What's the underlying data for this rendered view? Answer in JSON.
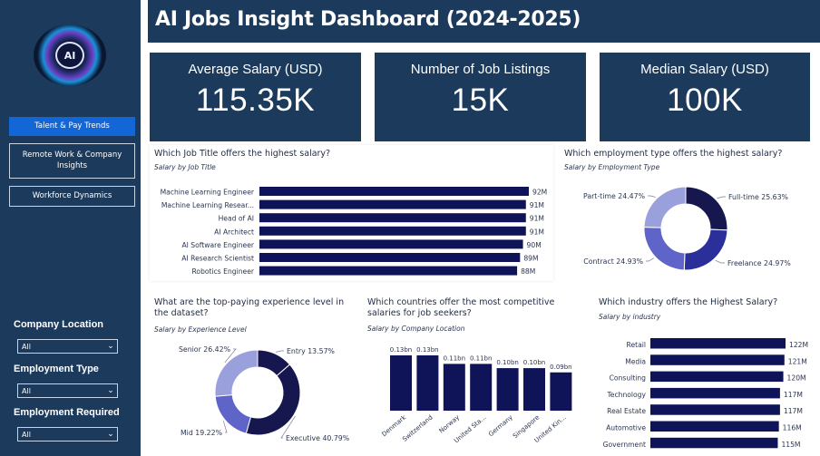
{
  "header": {
    "title": "AI Jobs Insight Dashboard (2024-2025)"
  },
  "logo": {
    "text": "AI"
  },
  "nav": {
    "buttons": [
      {
        "label": "Talent & Pay Trends",
        "active": true
      },
      {
        "label": "Remote Work & Company Insights",
        "active": false
      },
      {
        "label": "Workforce Dynamics",
        "active": false
      }
    ]
  },
  "filters": {
    "company_location": {
      "label": "Company Location",
      "value": "All"
    },
    "employment_type": {
      "label": "Employment Type",
      "value": "All"
    },
    "employment_required": {
      "label": "Employment Required",
      "value": "All"
    }
  },
  "kpis": {
    "average_salary": {
      "label": "Average Salary (USD)",
      "value": "115.35K"
    },
    "job_listings": {
      "label": "Number of Job Listings",
      "value": "15K"
    },
    "median_salary": {
      "label": "Median Salary (USD)",
      "value": "100K"
    }
  },
  "panels": {
    "job_title": {
      "title": "Which Job Title offers the highest salary?",
      "subtitle": "Salary by Job Title"
    },
    "employment_type": {
      "title": "Which employment type offers the highest salary?",
      "subtitle": "Salary by Employment Type"
    },
    "experience": {
      "title": "What are the top-paying experience level in the dataset?",
      "subtitle": "Salary by Experience Level"
    },
    "countries": {
      "title": "Which countries offer the most competitive salaries for job seekers?",
      "subtitle": "Salary by Company Location"
    },
    "industry": {
      "title": "Which industry offers the Highest Salary?",
      "subtitle": "Salary by industry"
    }
  },
  "colors": {
    "navy": "#1b3a5c",
    "active": "#1366d6",
    "bar": "#0f1458",
    "donut": [
      "#17174f",
      "#2b2f9a",
      "#5f64c8",
      "#9aa0dc"
    ]
  },
  "chart_data": [
    {
      "id": "job_title",
      "type": "bar",
      "orientation": "horizontal",
      "categories": [
        "Machine Learning Engineer",
        "Machine Learning Resear...",
        "Head of AI",
        "AI Architect",
        "AI Software Engineer",
        "AI Research Scientist",
        "Robotics Engineer"
      ],
      "values": [
        92,
        91,
        91,
        91,
        90,
        89,
        88
      ],
      "data_labels": [
        "92M",
        "91M",
        "91M",
        "91M",
        "90M",
        "89M",
        "88M"
      ],
      "xlim": [
        0,
        92
      ]
    },
    {
      "id": "employment_type",
      "type": "pie",
      "donut": true,
      "categories": [
        "Full-time",
        "Freelance",
        "Contract",
        "Part-time"
      ],
      "values": [
        25.63,
        24.97,
        24.93,
        24.47
      ],
      "data_labels": [
        "Full-time 25.63%",
        "Freelance 24.97%",
        "Contract 24.93%",
        "Part-time 24.47%"
      ]
    },
    {
      "id": "experience",
      "type": "pie",
      "donut": true,
      "categories": [
        "Entry",
        "Executive",
        "Mid",
        "Senior"
      ],
      "values": [
        13.57,
        40.79,
        19.22,
        26.42
      ],
      "data_labels": [
        "Entry 13.57%",
        "Executive 40.79%",
        "Mid 19.22%",
        "Senior 26.42%"
      ]
    },
    {
      "id": "countries",
      "type": "bar",
      "orientation": "vertical",
      "categories": [
        "Denmark",
        "Switzerland",
        "Norway",
        "United Sta...",
        "Germany",
        "Singapore",
        "United Kin..."
      ],
      "values": [
        0.13,
        0.13,
        0.11,
        0.11,
        0.1,
        0.1,
        0.09
      ],
      "data_labels": [
        "0.13bn",
        "0.13bn",
        "0.11bn",
        "0.11bn",
        "0.10bn",
        "0.10bn",
        "0.09bn"
      ],
      "ylim": [
        0,
        0.13
      ]
    },
    {
      "id": "industry",
      "type": "bar",
      "orientation": "horizontal",
      "categories": [
        "Retail",
        "Media",
        "Consulting",
        "Technology",
        "Real Estate",
        "Automotive",
        "Government"
      ],
      "values": [
        122,
        121,
        120,
        117,
        117,
        116,
        115
      ],
      "data_labels": [
        "122M",
        "121M",
        "120M",
        "117M",
        "117M",
        "116M",
        "115M"
      ],
      "xlim": [
        0,
        122
      ]
    }
  ]
}
